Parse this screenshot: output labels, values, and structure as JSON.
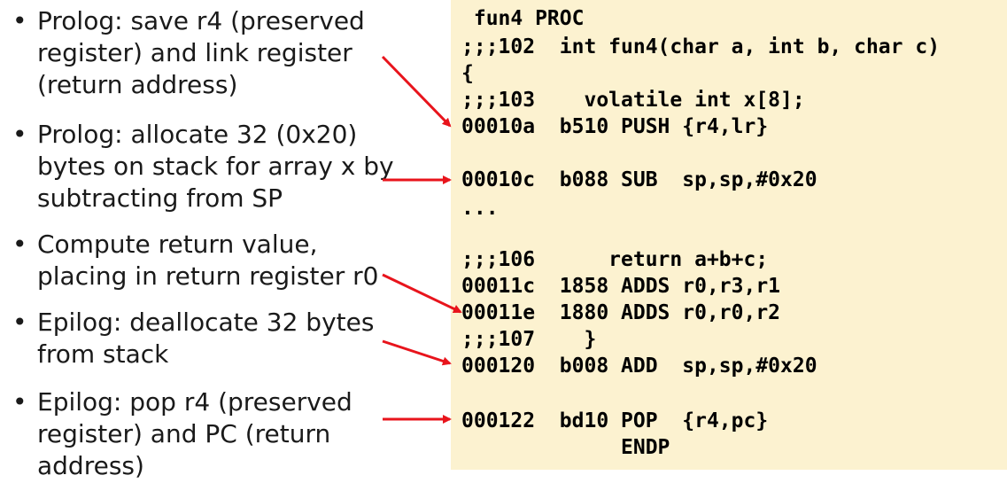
{
  "bullets": [
    {
      "marker": "•",
      "lines": [
        "Prolog: save r4 (preserved",
        "register) and link register",
        "(return address)"
      ]
    },
    {
      "marker": "•",
      "lines": [
        "Prolog: allocate 32 (0x20)",
        "bytes on stack for array x by",
        "subtracting from SP"
      ]
    },
    {
      "marker": "•",
      "lines": [
        "Compute return value,",
        "placing in return register r0"
      ]
    },
    {
      "marker": "•",
      "lines": [
        "Epilog: deallocate 32 bytes",
        "from stack"
      ]
    },
    {
      "marker": "•",
      "lines": [
        "Epilog: pop r4 (preserved",
        "register) and PC (return",
        "address)"
      ]
    }
  ],
  "code": [
    " fun4 PROC",
    ";;;102  int fun4(char a, int b, char c)",
    "{",
    ";;;103    volatile int x[8];",
    "00010a  b510 PUSH {r4,lr}",
    "00010c  b088 SUB  sp,sp,#0x20",
    "...",
    ";;;106      return a+b+c;",
    "00011c  1858 ADDS r0,r3,r1",
    "00011e  1880 ADDS r0,r0,r2",
    ";;;107    }",
    "000120  b008 ADD  sp,sp,#0x20",
    "000122  bd10 POP  {r4,pc}",
    "             ENDP"
  ],
  "colors": {
    "code_background": "#fcf2d0",
    "arrow": "#e8141c",
    "text": "#1a1a1a"
  }
}
